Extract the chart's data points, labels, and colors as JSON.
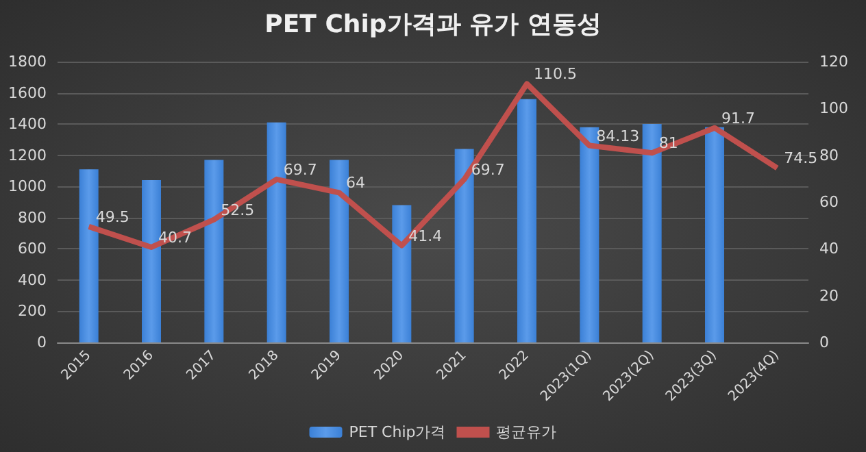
{
  "chart_data": {
    "type": "bar",
    "title": "PET Chip가격과 유가 연동성",
    "categories": [
      "2015",
      "2016",
      "2017",
      "2018",
      "2019",
      "2020",
      "2021",
      "2022",
      "2023(1Q)",
      "2023(2Q)",
      "2023(3Q)",
      "2023(4Q)"
    ],
    "series": [
      {
        "name": "PET Chip가격",
        "color": "#3b80d6",
        "values": [
          1110,
          1040,
          1170,
          1410,
          1170,
          880,
          1240,
          1560,
          1380,
          1400,
          1380,
          null
        ]
      },
      {
        "name": "평균유가",
        "type": "line",
        "axis": "y2",
        "color": "#c0504d",
        "data_labels": true,
        "values": [
          49.5,
          40.7,
          52.5,
          69.7,
          64,
          41.4,
          69.7,
          110.5,
          84.13,
          81,
          91.7,
          74.5
        ]
      }
    ],
    "ylim": [
      0,
      1800
    ],
    "yticks": [
      0,
      200,
      400,
      600,
      800,
      1000,
      1200,
      1400,
      1600,
      1800
    ],
    "y2lim": [
      0,
      120
    ],
    "y2ticks": [
      0,
      20,
      40,
      60,
      80,
      100,
      120
    ],
    "grid": "y",
    "legend": "bottom",
    "marker": "none",
    "line_style": "solid"
  }
}
